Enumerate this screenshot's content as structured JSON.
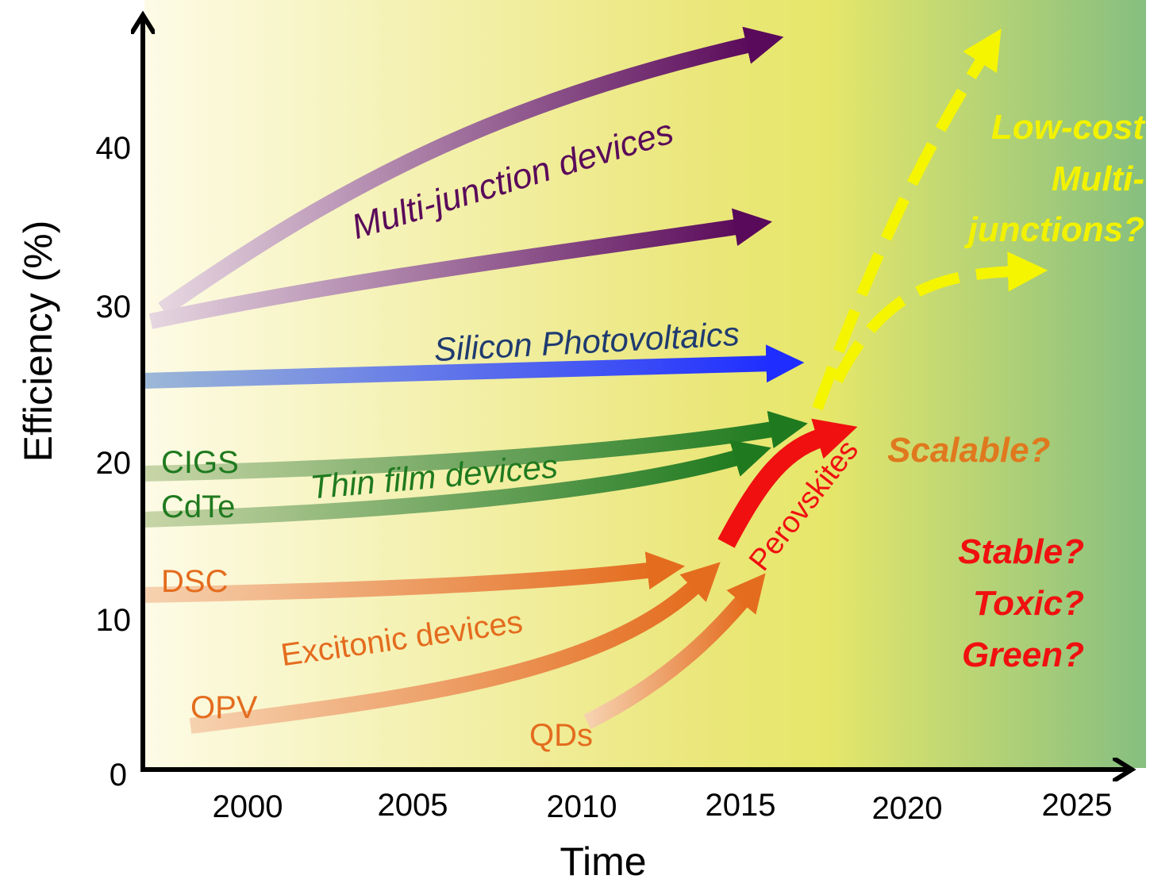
{
  "axes": {
    "y_label": "Efficiency (%)",
    "x_label": "Time",
    "yticks": [
      "0",
      "10",
      "20",
      "30",
      "40"
    ],
    "xticks": [
      "2000",
      "2005",
      "2010",
      "2015",
      "2020",
      "2025"
    ]
  },
  "labels": {
    "multi_junction": "Multi-junction devices",
    "silicon": "Silicon Photovoltaics",
    "thin_film": "Thin film devices",
    "cigs": "CIGS",
    "cdte": "CdTe",
    "dsc": "DSC",
    "excitonic": "Excitonic devices",
    "opv": "OPV",
    "qds": "QDs",
    "perovskites": "Perovskites",
    "scalable": "Scalable?",
    "stable": "Stable?",
    "toxic": "Toxic?",
    "green": "Green?",
    "low_cost": [
      "Low-cost",
      "Multi-",
      "junctions?"
    ]
  }
}
